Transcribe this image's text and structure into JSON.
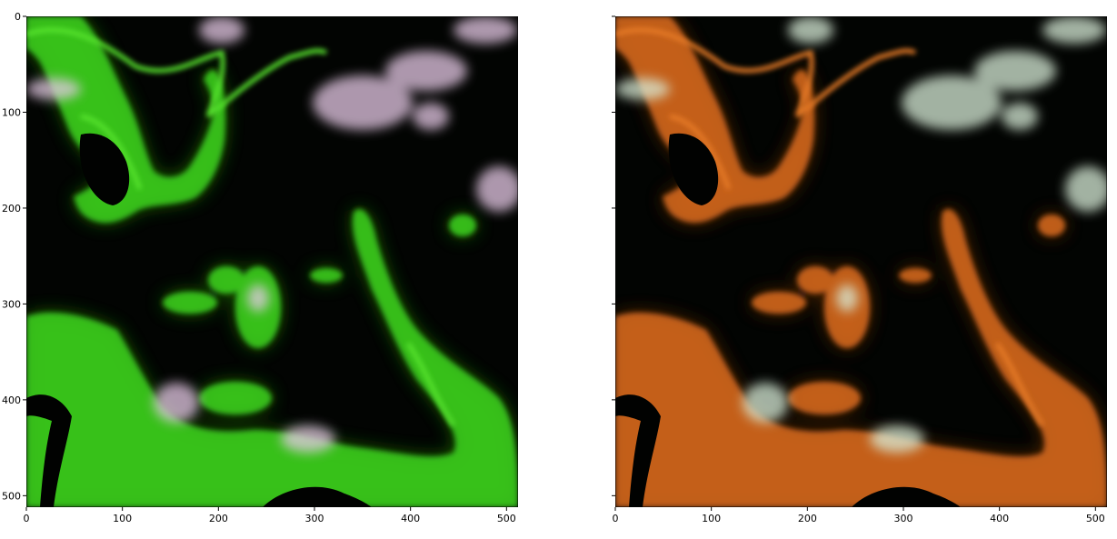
{
  "figure": {
    "panels": [
      {
        "id": "left",
        "description_color": "green",
        "x_ticks": [
          "0",
          "100",
          "200",
          "300",
          "400",
          "500"
        ],
        "y_ticks": [
          "0",
          "100",
          "200",
          "300",
          "400",
          "500"
        ],
        "y_tick_labels_shown": true,
        "xlim": [
          0,
          512
        ],
        "ylim": [
          0,
          512
        ]
      },
      {
        "id": "right",
        "description_color": "orange",
        "x_ticks": [
          "0",
          "100",
          "200",
          "300",
          "400",
          "500"
        ],
        "y_ticks": [
          "0",
          "100",
          "200",
          "300",
          "400",
          "500"
        ],
        "y_tick_labels_shown": false,
        "xlim": [
          0,
          512
        ],
        "ylim": [
          0,
          512
        ]
      }
    ],
    "colors": {
      "left_vegetation": "#3ed21e",
      "right_vegetation": "#d86a1c",
      "left_cloud": "#e6c9e6",
      "right_cloud": "#d8ecd8",
      "background": "#020402"
    }
  }
}
